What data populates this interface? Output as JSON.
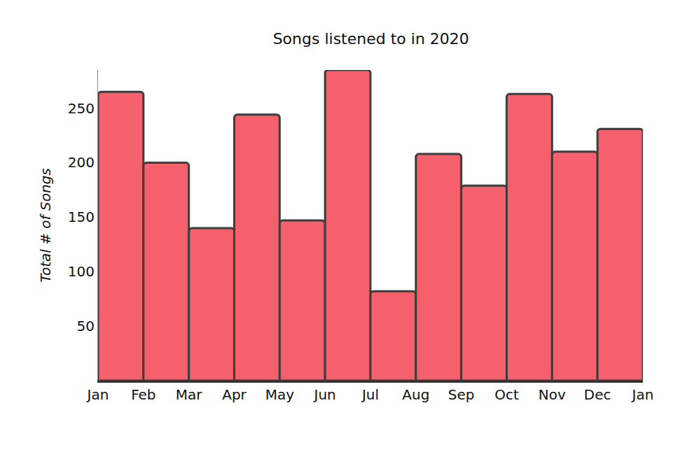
{
  "chart_data": {
    "type": "histogram",
    "title": "Songs listened to in 2020",
    "y_label": "Total # of Songs",
    "bins": [
      "Jan",
      "Feb",
      "Mar",
      "Apr",
      "May",
      "Jun",
      "Jul",
      "Aug",
      "Sep",
      "Oct",
      "Nov",
      "Dec",
      "Jan"
    ],
    "values": [
      265,
      200,
      140,
      244,
      147,
      285,
      82,
      208,
      179,
      263,
      210,
      231
    ],
    "color": "#f4606c",
    "ylim": [
      0,
      285
    ],
    "yticks": [
      50,
      100,
      150,
      200,
      250
    ],
    "grid": false
  }
}
